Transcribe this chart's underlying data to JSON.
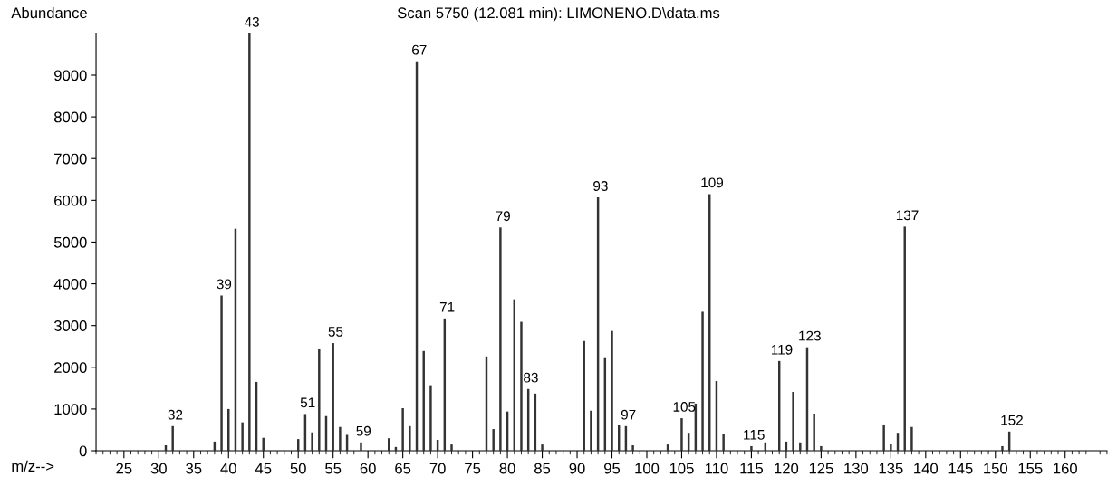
{
  "chart_data": {
    "type": "bar",
    "title": "Scan 5750 (12.081 min): LIMONENO.D\\data.ms",
    "xlabel": "m/z-->",
    "ylabel": "Abundance",
    "color": "#333333",
    "x": [
      31,
      32,
      38,
      39,
      40,
      41,
      42,
      43,
      44,
      45,
      50,
      51,
      52,
      53,
      54,
      55,
      56,
      57,
      59,
      63,
      64,
      65,
      66,
      67,
      68,
      69,
      70,
      71,
      72,
      77,
      78,
      79,
      80,
      81,
      82,
      83,
      84,
      85,
      91,
      92,
      93,
      94,
      95,
      96,
      97,
      98,
      103,
      105,
      106,
      107,
      108,
      109,
      110,
      111,
      115,
      117,
      119,
      120,
      121,
      122,
      123,
      124,
      125,
      134,
      135,
      136,
      137,
      138,
      151,
      152
    ],
    "values": [
      130,
      590,
      220,
      3720,
      1000,
      5320,
      680,
      10000,
      1650,
      310,
      280,
      880,
      440,
      2430,
      830,
      2580,
      570,
      380,
      200,
      300,
      90,
      1020,
      590,
      9330,
      2390,
      1570,
      260,
      3170,
      150,
      2260,
      520,
      5350,
      940,
      3630,
      3090,
      1480,
      1370,
      150,
      2630,
      960,
      6070,
      2240,
      2870,
      630,
      590,
      130,
      150,
      780,
      430,
      1130,
      3330,
      6150,
      1670,
      410,
      110,
      200,
      2150,
      220,
      1410,
      200,
      2480,
      890,
      110,
      630,
      170,
      430,
      5370,
      570,
      110,
      460
    ],
    "annotations": [
      {
        "text": "32",
        "x": 32,
        "y": 590
      },
      {
        "text": "39",
        "x": 39,
        "y": 3720
      },
      {
        "text": "43",
        "x": 43,
        "y": 10000
      },
      {
        "text": "51",
        "x": 51,
        "y": 880
      },
      {
        "text": "55",
        "x": 55,
        "y": 2580
      },
      {
        "text": "59",
        "x": 59,
        "y": 200
      },
      {
        "text": "67",
        "x": 67,
        "y": 9330
      },
      {
        "text": "71",
        "x": 71,
        "y": 3170
      },
      {
        "text": "79",
        "x": 79,
        "y": 5350
      },
      {
        "text": "83",
        "x": 83,
        "y": 1480
      },
      {
        "text": "93",
        "x": 93,
        "y": 6070
      },
      {
        "text": "97",
        "x": 97,
        "y": 590
      },
      {
        "text": "105",
        "x": 105,
        "y": 780
      },
      {
        "text": "109",
        "x": 109,
        "y": 6150
      },
      {
        "text": "115",
        "x": 115,
        "y": 110
      },
      {
        "text": "119",
        "x": 119,
        "y": 2150
      },
      {
        "text": "123",
        "x": 123,
        "y": 2480
      },
      {
        "text": "137",
        "x": 137,
        "y": 5370
      },
      {
        "text": "152",
        "x": 152,
        "y": 460
      }
    ],
    "xlim": [
      21,
      166
    ],
    "ylim": [
      0,
      10000
    ],
    "xticks": [
      25,
      30,
      35,
      40,
      45,
      50,
      55,
      60,
      65,
      70,
      75,
      80,
      85,
      90,
      95,
      100,
      105,
      110,
      115,
      120,
      125,
      130,
      135,
      140,
      145,
      150,
      155,
      160
    ],
    "yticks": [
      0,
      1000,
      2000,
      3000,
      4000,
      5000,
      6000,
      7000,
      8000,
      9000
    ],
    "grid": false
  }
}
